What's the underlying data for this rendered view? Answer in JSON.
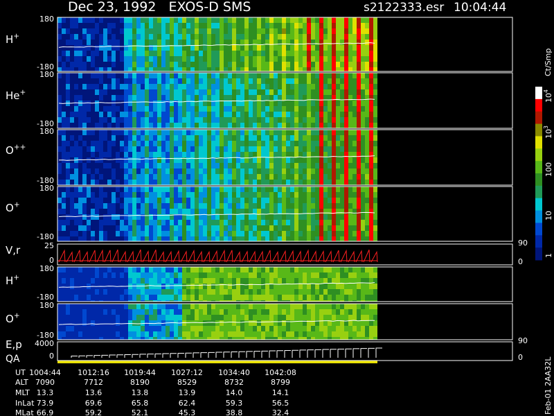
{
  "header": {
    "title": "Dec 23, 1992   EXOS-D SMS",
    "file": "s2122333.esr",
    "time": "10:04:44"
  },
  "panels": [
    {
      "label": "H",
      "sup": "+",
      "top": "180",
      "bottom": "-180"
    },
    {
      "label": "He",
      "sup": "+",
      "top": "180",
      "bottom": "-180"
    },
    {
      "label": "O",
      "sup": "++",
      "top": "180",
      "bottom": "-180"
    },
    {
      "label": "O",
      "sup": "+",
      "top": "180",
      "bottom": "-180"
    },
    {
      "label": "V,r",
      "top": "25",
      "bottom": "0",
      "right_top": "90",
      "right_bottom": "0"
    },
    {
      "label": "H",
      "sup": "+",
      "top": "180",
      "bottom": "-180"
    },
    {
      "label": "O",
      "sup": "+",
      "top": "180",
      "bottom": "-180"
    },
    {
      "label": "E,p",
      "label2": "QA",
      "top": "4000",
      "bottom": "0",
      "right_top": "90",
      "right_bottom": "0"
    }
  ],
  "colorbar": {
    "unit": "Ct/Smp",
    "labels": [
      {
        "base": "10",
        "sup": "4"
      },
      {
        "base": "10",
        "sup": "3"
      },
      {
        "base": "100"
      },
      {
        "base": "10"
      },
      {
        "base": "1"
      }
    ]
  },
  "table": {
    "row_labels": [
      "UT",
      "ALT",
      "MLT",
      "InLat",
      "MLat"
    ],
    "rows": [
      [
        "1004:44",
        "1012:16",
        "1019:44",
        "1027:12",
        "1034:40",
        "1042:08"
      ],
      [
        "7090",
        "7712",
        "8190",
        "8529",
        "8732",
        "8799"
      ],
      [
        "13.3",
        "13.6",
        "13.8",
        "13.9",
        "14.0",
        "14.1"
      ],
      [
        "73.9",
        "69.6",
        "65.8",
        "62.4",
        "59.3",
        "56.5"
      ],
      [
        "66.9",
        "59.2",
        "52.1",
        "45.3",
        "38.8",
        "32.4"
      ]
    ]
  },
  "footer": "Feb-01 2AA32L"
}
